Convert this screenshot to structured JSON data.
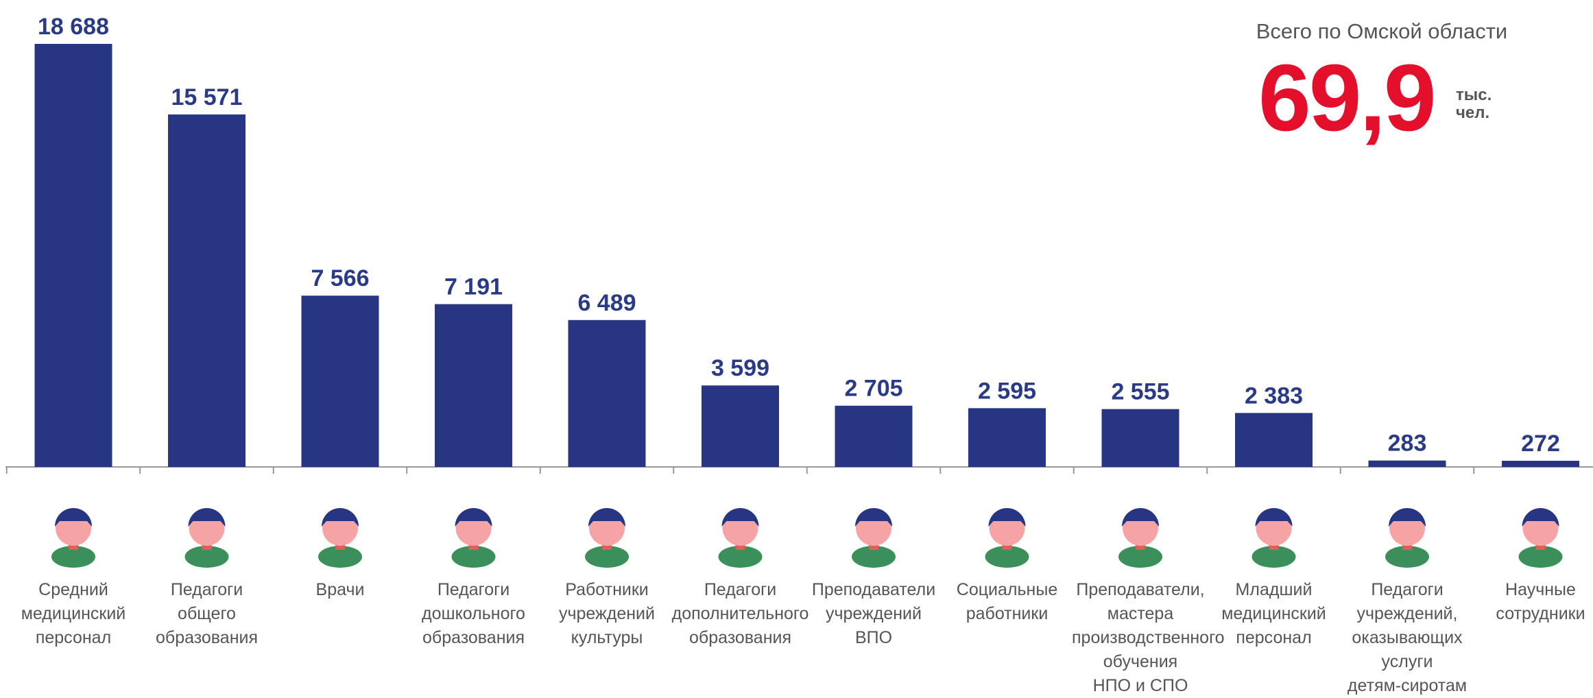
{
  "chart_data": {
    "type": "bar",
    "summary": {
      "caption": "Всего по Омской области",
      "total": "69,9",
      "unit": "тыс.\nчел."
    },
    "categories": [
      "Средний\nмедицинский\nперсонал",
      "Педагоги\nобщего\nобразования",
      "Врачи",
      "Педагоги\nдошкольного\nобразования",
      "Работники\nучреждений\nкультуры",
      "Педагоги\nдополнительного\nобразования",
      "Преподаватели\nучреждений\nВПО",
      "Социальные\nработники",
      "Преподаватели,\nмастера\nпроизводственного\nобучения\nНПО и СПО",
      "Младший\nмедицинский\nперсонал",
      "Педагоги\nучреждений,\nоказывающих\nуслуги\nдетям-сиротам",
      "Научные\nсотрудники"
    ],
    "values": [
      18688,
      15571,
      7566,
      7191,
      6489,
      3599,
      2705,
      2595,
      2555,
      2383,
      283,
      272
    ],
    "value_labels": [
      "18 688",
      "15 571",
      "7 566",
      "7 191",
      "6 489",
      "3 599",
      "2 705",
      "2 595",
      "2 555",
      "2 383",
      "283",
      "272"
    ],
    "color": "#283583"
  }
}
